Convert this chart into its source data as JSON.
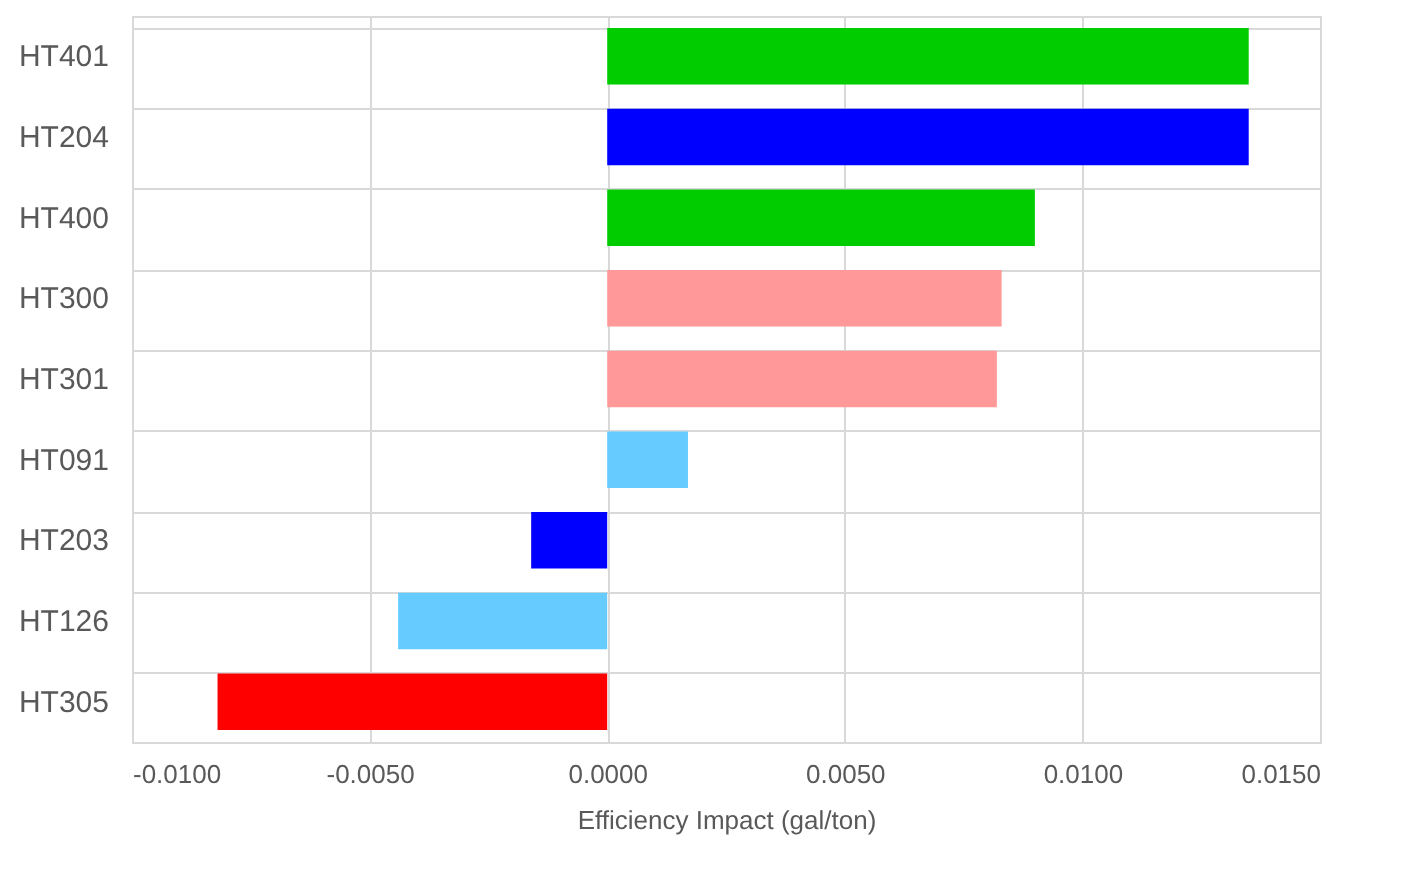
{
  "chart_data": {
    "type": "bar",
    "orientation": "horizontal",
    "xlabel": "Efficiency Impact (gal/ton)",
    "categories": [
      "HT401",
      "HT204",
      "HT400",
      "HT300",
      "HT301",
      "HT091",
      "HT203",
      "HT126",
      "HT305"
    ],
    "values": [
      0.0135,
      0.0135,
      0.009,
      0.0083,
      0.0082,
      0.0017,
      -0.0016,
      -0.0044,
      -0.0082
    ],
    "colors": [
      "#00cc00",
      "#0000ff",
      "#00cc00",
      "#ff9999",
      "#ff9999",
      "#66ccff",
      "#0000ff",
      "#66ccff",
      "#ff0000"
    ],
    "xlim": [
      -0.01,
      0.015
    ],
    "xticks": [
      {
        "value": -0.01,
        "label": "-0.0100"
      },
      {
        "value": -0.005,
        "label": "-0.0050"
      },
      {
        "value": 0,
        "label": "0.0000"
      },
      {
        "value": 0.005,
        "label": "0.0050"
      },
      {
        "value": 0.01,
        "label": "0.0100"
      },
      {
        "value": 0.015,
        "label": "0.0150"
      }
    ],
    "grid": true
  }
}
